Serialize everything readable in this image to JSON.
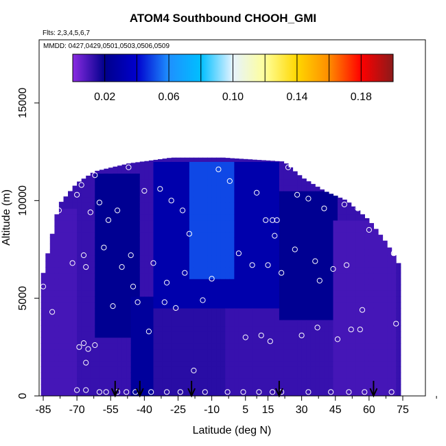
{
  "header": {
    "title": "ATOM4 Southbound CHOOH_GMI",
    "flights": "Flts: 2,3,4,5,6,7",
    "dates": "MMDD: 0427,0429,0501,0503,0506,0509"
  },
  "chart_data": {
    "type": "heatmap",
    "title": "ATOM4 Southbound CHOOH_GMI",
    "xlabel": "Latitude (deg N)",
    "ylabel": "Altitude (m)",
    "xlim": [
      -88,
      90
    ],
    "ylim": [
      0,
      17500
    ],
    "x_ticks": [
      -85,
      -70,
      -55,
      -40,
      -25,
      -10,
      5,
      15,
      30,
      45,
      60,
      75
    ],
    "x_tick_labels": [
      "-85",
      "-70",
      "-55",
      "-40",
      "-25",
      "-10",
      "5",
      "15",
      "30",
      "45",
      "60",
      "75"
    ],
    "y_ticks": [
      0,
      5000,
      10000,
      15000
    ],
    "y_tick_labels": [
      "0",
      "5000",
      "10000",
      "15000"
    ],
    "colorbar": {
      "min": 0.0,
      "max": 0.2,
      "ticks": [
        0.02,
        0.06,
        0.1,
        0.14,
        0.18
      ],
      "tick_labels": [
        "0.02",
        "0.06",
        "0.10",
        "0.14",
        "0.18"
      ],
      "colors": [
        "#8a2be2",
        "#00008b",
        "#0000cd",
        "#1e90ff",
        "#00bfff",
        "#e6f3ff",
        "#ffff99",
        "#ffd700",
        "#ff8c00",
        "#ff0000",
        "#8b1a1a"
      ]
    },
    "profile_latitudes": [
      -53,
      -42,
      -19,
      20,
      62
    ],
    "field_regions": [
      {
        "lat": [
          -86,
          -70
        ],
        "alt": [
          0,
          9500
        ],
        "value": 0.01
      },
      {
        "lat": [
          -70,
          -40
        ],
        "alt": [
          0,
          3000
        ],
        "value": 0.012
      },
      {
        "lat": [
          -62,
          -42
        ],
        "alt": [
          3000,
          11500
        ],
        "value": 0.022
      },
      {
        "lat": [
          -45,
          -35
        ],
        "alt": [
          0,
          5000
        ],
        "value": 0.025
      },
      {
        "lat": [
          -35,
          -5
        ],
        "alt": [
          0,
          4500
        ],
        "value": 0.014
      },
      {
        "lat": [
          -35,
          20
        ],
        "alt": [
          4500,
          12000
        ],
        "value": 0.03
      },
      {
        "lat": [
          -20,
          0
        ],
        "alt": [
          6000,
          12000
        ],
        "value": 0.05
      },
      {
        "lat": [
          5,
          20
        ],
        "alt": [
          0,
          4000
        ],
        "value": 0.012
      },
      {
        "lat": [
          20,
          45
        ],
        "alt": [
          4000,
          10500
        ],
        "value": 0.022
      },
      {
        "lat": [
          45,
          72
        ],
        "alt": [
          0,
          9000
        ],
        "value": 0.01
      }
    ],
    "sample_points": [
      {
        "lat": -85,
        "alt": 5600
      },
      {
        "lat": -81,
        "alt": 4300
      },
      {
        "lat": -78,
        "alt": 9500
      },
      {
        "lat": -72,
        "alt": 6800
      },
      {
        "lat": -70,
        "alt": 10300
      },
      {
        "lat": -68,
        "alt": 10800
      },
      {
        "lat": -67,
        "alt": 7200
      },
      {
        "lat": -66,
        "alt": 6600
      },
      {
        "lat": -64,
        "alt": 9400
      },
      {
        "lat": -62,
        "alt": 11300
      },
      {
        "lat": -60,
        "alt": 9900
      },
      {
        "lat": -58,
        "alt": 7600
      },
      {
        "lat": -56,
        "alt": 9000
      },
      {
        "lat": -54,
        "alt": 4600
      },
      {
        "lat": -52,
        "alt": 9500
      },
      {
        "lat": -50,
        "alt": 6600
      },
      {
        "lat": -47,
        "alt": 11700
      },
      {
        "lat": -46,
        "alt": 7200
      },
      {
        "lat": -45,
        "alt": 5600
      },
      {
        "lat": -43,
        "alt": 4800
      },
      {
        "lat": -40,
        "alt": 10500
      },
      {
        "lat": -38,
        "alt": 3300
      },
      {
        "lat": -36,
        "alt": 6800
      },
      {
        "lat": -33,
        "alt": 10600
      },
      {
        "lat": -31,
        "alt": 4800
      },
      {
        "lat": -30,
        "alt": 5800
      },
      {
        "lat": -28,
        "alt": 10000
      },
      {
        "lat": -26,
        "alt": 4500
      },
      {
        "lat": -23,
        "alt": 9500
      },
      {
        "lat": -22,
        "alt": 6300
      },
      {
        "lat": -20,
        "alt": 8300
      },
      {
        "lat": -18,
        "alt": 1300
      },
      {
        "lat": -14,
        "alt": 4900
      },
      {
        "lat": -10,
        "alt": 6000
      },
      {
        "lat": -7,
        "alt": 11600
      },
      {
        "lat": -2,
        "alt": 11000
      },
      {
        "lat": 2,
        "alt": 7300
      },
      {
        "lat": 5,
        "alt": 3000
      },
      {
        "lat": 8,
        "alt": 6700
      },
      {
        "lat": 10,
        "alt": 10400
      },
      {
        "lat": 12,
        "alt": 3100
      },
      {
        "lat": 14,
        "alt": 9000
      },
      {
        "lat": 15,
        "alt": 6700
      },
      {
        "lat": 16,
        "alt": 2800
      },
      {
        "lat": 17,
        "alt": 9000
      },
      {
        "lat": 18,
        "alt": 8200
      },
      {
        "lat": 19,
        "alt": 9000
      },
      {
        "lat": 21,
        "alt": 6300
      },
      {
        "lat": 24,
        "alt": 11700
      },
      {
        "lat": 27,
        "alt": 7500
      },
      {
        "lat": 28,
        "alt": 10300
      },
      {
        "lat": 30,
        "alt": 3100
      },
      {
        "lat": 33,
        "alt": 10100
      },
      {
        "lat": 36,
        "alt": 6900
      },
      {
        "lat": 37,
        "alt": 3500
      },
      {
        "lat": 38,
        "alt": 5900
      },
      {
        "lat": 40,
        "alt": 9600
      },
      {
        "lat": 44,
        "alt": 6500
      },
      {
        "lat": 46,
        "alt": 2900
      },
      {
        "lat": 49,
        "alt": 9800
      },
      {
        "lat": 50,
        "alt": 6700
      },
      {
        "lat": 52,
        "alt": 3400
      },
      {
        "lat": 55,
        "alt": 9600
      },
      {
        "lat": 56,
        "alt": 3400
      },
      {
        "lat": 57,
        "alt": 4400
      },
      {
        "lat": 60,
        "alt": 8500
      },
      {
        "lat": 71,
        "alt": 7300
      },
      {
        "lat": 72,
        "alt": 3700
      },
      {
        "lat": -69,
        "alt": 2500
      },
      {
        "lat": -67,
        "alt": 2700
      },
      {
        "lat": -65,
        "alt": 2400
      },
      {
        "lat": -62,
        "alt": 2600
      },
      {
        "lat": -66,
        "alt": 1700
      },
      {
        "lat": -70,
        "alt": 300
      },
      {
        "lat": -66,
        "alt": 300
      },
      {
        "lat": -57,
        "alt": 200
      },
      {
        "lat": -52,
        "alt": 200
      },
      {
        "lat": -48,
        "alt": 200
      },
      {
        "lat": -44,
        "alt": 200
      },
      {
        "lat": -37,
        "alt": 200
      },
      {
        "lat": -30,
        "alt": 200
      },
      {
        "lat": -24,
        "alt": 200
      },
      {
        "lat": -13,
        "alt": 200
      },
      {
        "lat": -3,
        "alt": 200
      },
      {
        "lat": 4,
        "alt": 200
      },
      {
        "lat": 11,
        "alt": 200
      },
      {
        "lat": 17,
        "alt": 200
      },
      {
        "lat": 21,
        "alt": 200
      },
      {
        "lat": 33,
        "alt": 200
      },
      {
        "lat": 43,
        "alt": 200
      },
      {
        "lat": 51,
        "alt": 200
      },
      {
        "lat": 58,
        "alt": 200
      },
      {
        "lat": 70,
        "alt": 200
      },
      {
        "lat": -60,
        "alt": 200
      }
    ]
  }
}
